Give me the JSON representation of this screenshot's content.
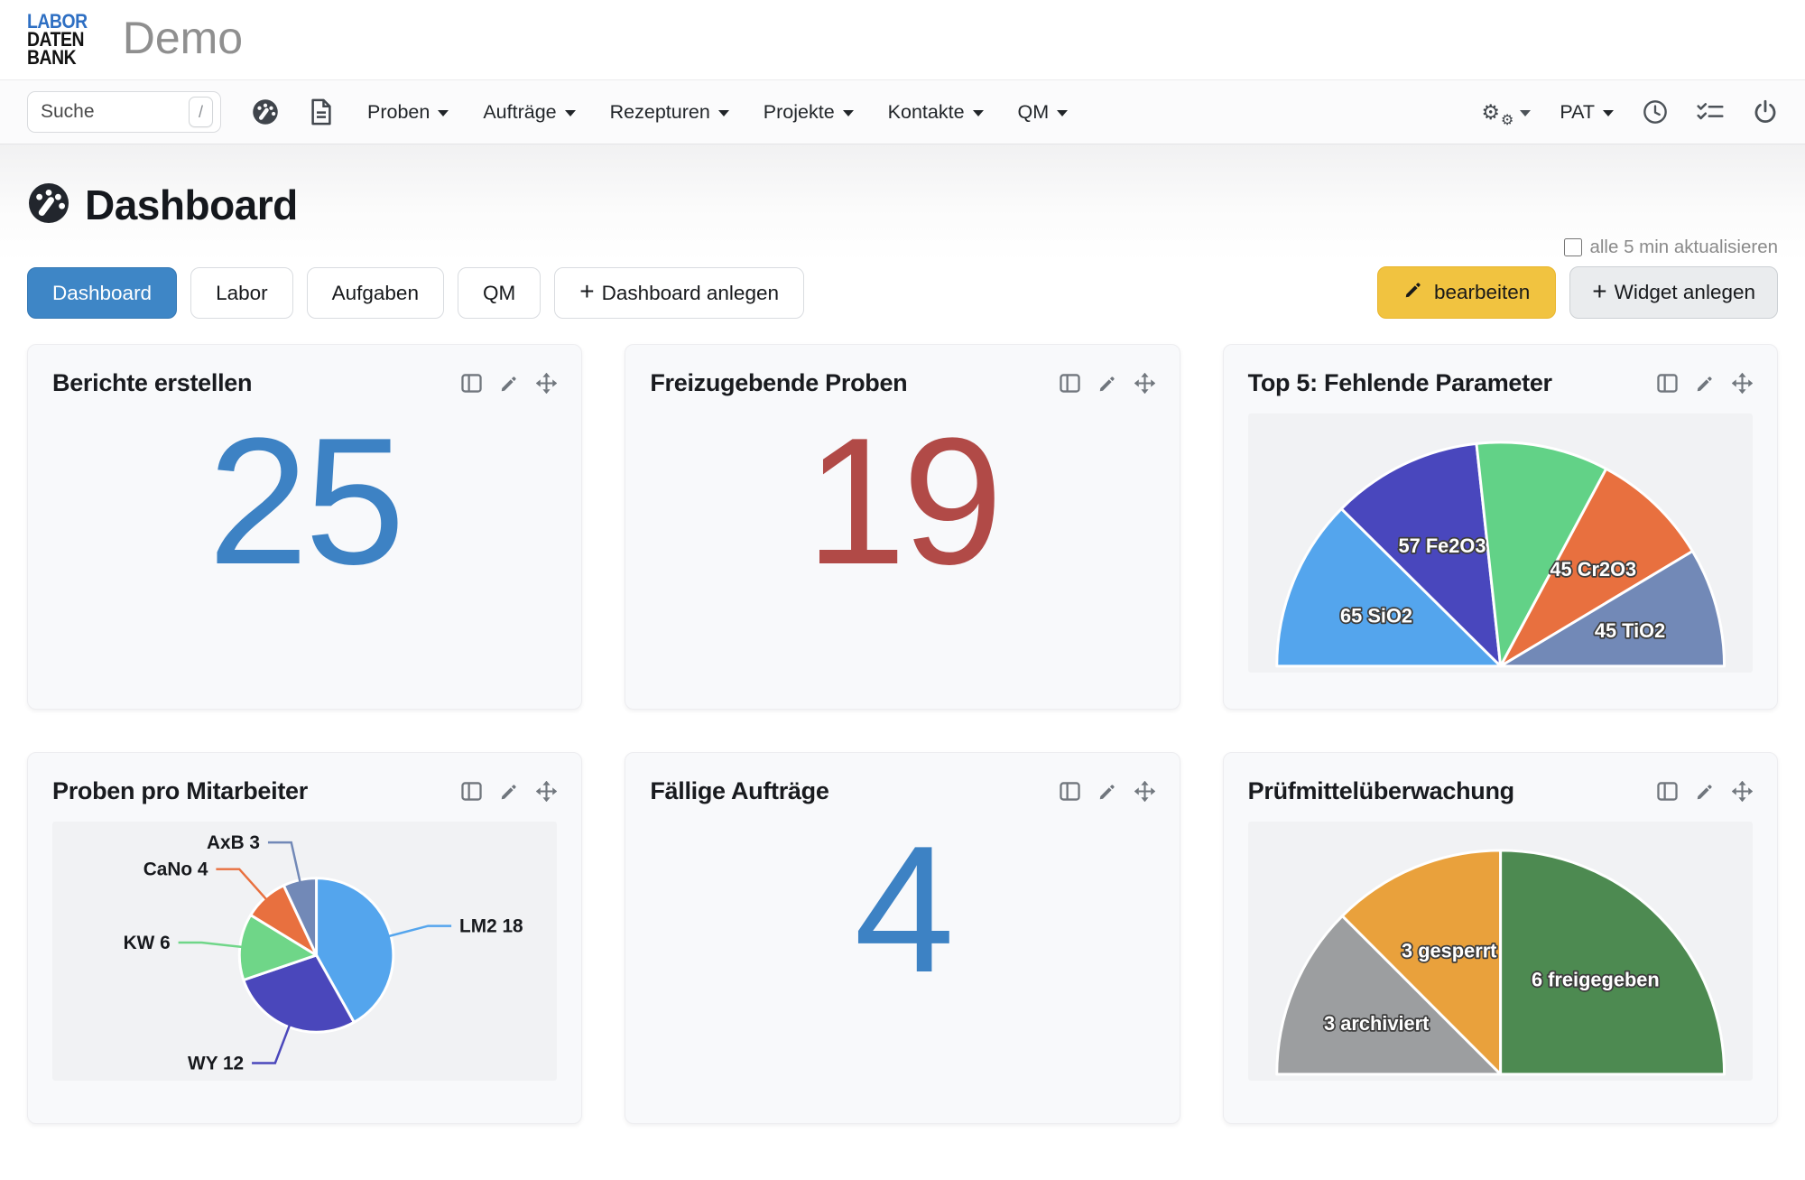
{
  "ui": {
    "plus_glyph": "+"
  },
  "header": {
    "logo_lines": [
      "LABOR",
      "DATEN",
      "BANK"
    ],
    "app_title": "Demo"
  },
  "navbar": {
    "search": {
      "placeholder": "Suche",
      "shortcut": "/"
    },
    "menus": [
      {
        "label": "Proben"
      },
      {
        "label": "Aufträge"
      },
      {
        "label": "Rezepturen"
      },
      {
        "label": "Projekte"
      },
      {
        "label": "Kontakte"
      },
      {
        "label": "QM"
      }
    ],
    "user_label": "PAT"
  },
  "page": {
    "title": "Dashboard",
    "tabs": [
      {
        "label": "Dashboard",
        "active": true
      },
      {
        "label": "Labor",
        "active": false
      },
      {
        "label": "Aufgaben",
        "active": false
      },
      {
        "label": "QM",
        "active": false
      }
    ],
    "create_dashboard_label": "Dashboard anlegen",
    "auto_refresh_label": "alle 5 min aktualisieren",
    "auto_refresh_checked": false,
    "edit_button_label": "bearbeiten",
    "add_widget_button_label": "Widget anlegen"
  },
  "widgets": [
    {
      "title": "Berichte erstellen",
      "type": "number",
      "value": "25",
      "value_color": "#3d82c4"
    },
    {
      "title": "Freizugebende Proben",
      "type": "number",
      "value": "19",
      "value_color": "#b14a47"
    },
    {
      "title": "Top 5: Fehlende Parameter",
      "type": "chart",
      "chart_index": 0
    },
    {
      "title": "Proben pro Mitarbeiter",
      "type": "chart",
      "chart_index": 1
    },
    {
      "title": "Fällige Aufträge",
      "type": "number",
      "value": "4",
      "value_color": "#3d82c4"
    },
    {
      "title": "Prüfmittelüberwachung",
      "type": "chart",
      "chart_index": 2
    }
  ],
  "chart_data": [
    {
      "type": "pie",
      "variant": "semicircle",
      "title": "Top 5: Fehlende Parameter",
      "label_position": "inside",
      "segments": [
        {
          "label": "SiO2",
          "value": 65,
          "display": "65 SiO2",
          "color": "#54a5ed"
        },
        {
          "label": "Fe2O3",
          "value": 57,
          "display": "57 Fe2O3",
          "color": "#4947bd"
        },
        {
          "label": "",
          "value": 50,
          "display": "",
          "color": "#62d287"
        },
        {
          "label": "Cr2O3",
          "value": 45,
          "display": "45 Cr2O3",
          "color": "#e8703f"
        },
        {
          "label": "TiO2",
          "value": 45,
          "display": "45 TiO2",
          "color": "#7289b7"
        }
      ]
    },
    {
      "type": "pie",
      "variant": "full",
      "title": "Proben pro Mitarbeiter",
      "label_position": "outside",
      "segments": [
        {
          "label": "LM2",
          "value": 18,
          "display": "LM2 18",
          "color": "#54a5ed"
        },
        {
          "label": "WY",
          "value": 12,
          "display": "WY 12",
          "color": "#4a47bb"
        },
        {
          "label": "KW",
          "value": 6,
          "display": "KW 6",
          "color": "#6fd688"
        },
        {
          "label": "CaNo",
          "value": 4,
          "display": "CaNo 4",
          "color": "#e8703f"
        },
        {
          "label": "AxB",
          "value": 3,
          "display": "AxB 3",
          "color": "#7289b7"
        }
      ]
    },
    {
      "type": "pie",
      "variant": "semicircle",
      "title": "Prüfmittelüberwachung",
      "label_position": "inside",
      "segments": [
        {
          "label": "archiviert",
          "value": 3,
          "display": "3 archiviert",
          "color": "#9c9ea0"
        },
        {
          "label": "gesperrt",
          "value": 3,
          "display": "3 gesperrt",
          "color": "#e9a13c"
        },
        {
          "label": "freigegeben",
          "value": 6,
          "display": "6 freigegeben",
          "color": "#4d8a51"
        }
      ]
    }
  ]
}
